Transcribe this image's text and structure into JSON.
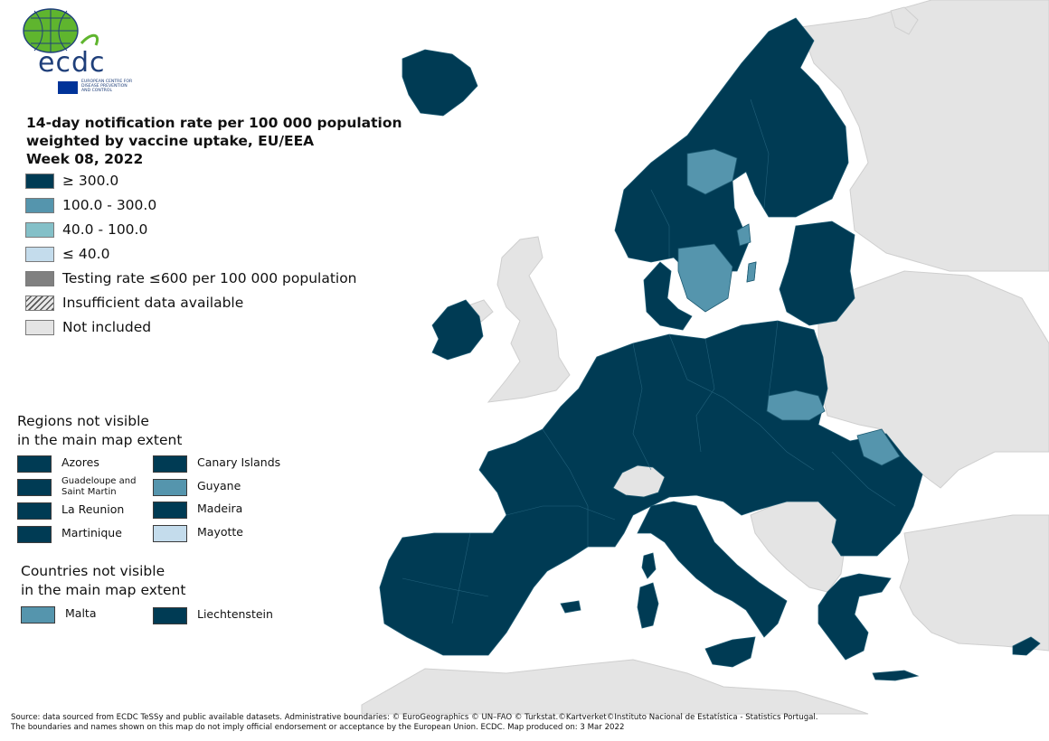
{
  "logo": {
    "wordmark": "ecdc",
    "subtitle_lines": [
      "EUROPEAN CENTRE FOR",
      "DISEASE PREVENTION",
      "AND CONTROL"
    ]
  },
  "title": {
    "line1": "14-day notification rate per 100 000 population",
    "line2": "weighted by vaccine uptake, EU/EEA",
    "line3": "Week 08, 2022"
  },
  "legend": [
    {
      "label": "≥ 300.0",
      "color": "#003b54"
    },
    {
      "label": "100.0 - 300.0",
      "color": "#5595ad"
    },
    {
      "label": "40.0 - 100.0",
      "color": "#84c0c8"
    },
    {
      "label": "≤ 40.0",
      "color": "#c4dcec"
    },
    {
      "label": "Testing rate ≤600 per 100 000 population",
      "color": "#808080"
    },
    {
      "label": "Insufficient data available",
      "color": "hatched"
    },
    {
      "label": "Not included",
      "color": "#e4e4e4"
    }
  ],
  "regions_section": {
    "title_line1": "Regions not visible",
    "title_line2": "in the main map extent",
    "items": [
      {
        "label": "Azores",
        "color": "#003b54"
      },
      {
        "label": "Canary Islands",
        "color": "#003b54"
      },
      {
        "label": "Guadeloupe and Saint Martin",
        "color": "#003b54"
      },
      {
        "label": "Guyane",
        "color": "#5595ad"
      },
      {
        "label": "La Reunion",
        "color": "#003b54"
      },
      {
        "label": "Madeira",
        "color": "#003b54"
      },
      {
        "label": "Martinique",
        "color": "#003b54"
      },
      {
        "label": "Mayotte",
        "color": "#c4dcec"
      }
    ]
  },
  "countries_section": {
    "title_line1": "Countries not visible",
    "title_line2": "in the main map extent",
    "items": [
      {
        "label": "Malta",
        "color": "#5595ad"
      },
      {
        "label": "Liechtenstein",
        "color": "#003b54"
      }
    ]
  },
  "map": {
    "category_colors": {
      "ge300": "#003b54",
      "r100_300": "#5595ad",
      "r40_100": "#84c0c8",
      "le40": "#c4dcec",
      "not_included": "#e4e4e4",
      "sea": "#ffffff"
    }
  },
  "source": {
    "line1": "Source: data sourced from ECDC TeSSy and public available datasets. Administrative boundaries: © EuroGeographics © UN–FAO © Turkstat.©Kartverket©Instituto Nacional de Estatística - Statistics Portugal.",
    "line2": "The boundaries and names shown on this map do not imply official endorsement or acceptance by the European Union. ECDC. Map produced on: 3 Mar 2022"
  }
}
